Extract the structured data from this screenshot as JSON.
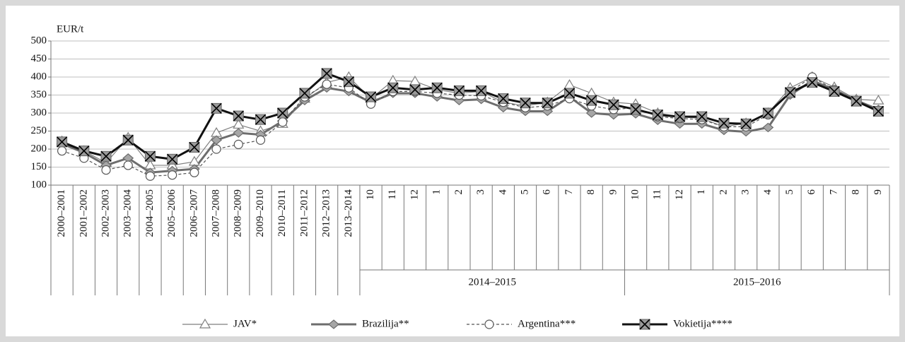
{
  "chart_data": {
    "type": "line",
    "y_label": "EUR/t",
    "categories": [
      "2000–2001",
      "2001–2002",
      "2002–2003",
      "2003–2004",
      "2004–2005",
      "2005–2006",
      "2006–2007",
      "2007–2008",
      "2008–2009",
      "2009–2010",
      "2010–2011",
      "2011–2012",
      "2012–2013",
      "2013–2014",
      "10",
      "11",
      "12",
      "1",
      "2",
      "3",
      "4",
      "5",
      "6",
      "7",
      "8",
      "9",
      "10",
      "11",
      "12",
      "1",
      "2",
      "3",
      "4",
      "5",
      "6",
      "7",
      "8",
      "9"
    ],
    "category_groups": [
      {
        "label": "2014–2015",
        "from": 14,
        "to": 25
      },
      {
        "label": "2015–2016",
        "from": 26,
        "to": 37
      }
    ],
    "ylim": [
      100,
      500
    ],
    "yticks": [
      100,
      150,
      200,
      250,
      300,
      350,
      400,
      450,
      500
    ],
    "grid": true,
    "series": [
      {
        "name": "JAV*",
        "color": "#7f7f7f",
        "values": [
          222,
          195,
          162,
          232,
          155,
          155,
          165,
          245,
          268,
          250,
          270,
          340,
          385,
          400,
          340,
          390,
          388,
          365,
          355,
          360,
          330,
          320,
          330,
          378,
          355,
          330,
          325,
          300,
          290,
          285,
          262,
          272,
          300,
          370,
          400,
          372,
          338,
          335
        ]
      },
      {
        "name": "Brazilija**",
        "color": "#6d6d6d",
        "values": [
          215,
          190,
          155,
          175,
          135,
          140,
          145,
          225,
          245,
          240,
          278,
          335,
          370,
          360,
          330,
          355,
          355,
          345,
          335,
          338,
          315,
          305,
          305,
          345,
          300,
          295,
          298,
          280,
          270,
          270,
          252,
          248,
          260,
          350,
          390,
          365,
          335,
          310
        ]
      },
      {
        "name": "Argentina***",
        "color": "#555555",
        "values": [
          195,
          175,
          142,
          155,
          125,
          128,
          135,
          200,
          213,
          225,
          275,
          345,
          380,
          370,
          325,
          360,
          360,
          355,
          350,
          348,
          330,
          315,
          320,
          340,
          320,
          310,
          315,
          290,
          285,
          282,
          262,
          262,
          295,
          360,
          400,
          365,
          335,
          305
        ]
      },
      {
        "name": "Vokietija****",
        "color": "#111111",
        "values": [
          220,
          195,
          180,
          225,
          180,
          172,
          205,
          313,
          292,
          282,
          300,
          355,
          410,
          387,
          345,
          370,
          365,
          370,
          362,
          362,
          340,
          328,
          328,
          355,
          335,
          323,
          310,
          295,
          290,
          290,
          272,
          270,
          300,
          357,
          385,
          360,
          333,
          305
        ]
      }
    ]
  }
}
